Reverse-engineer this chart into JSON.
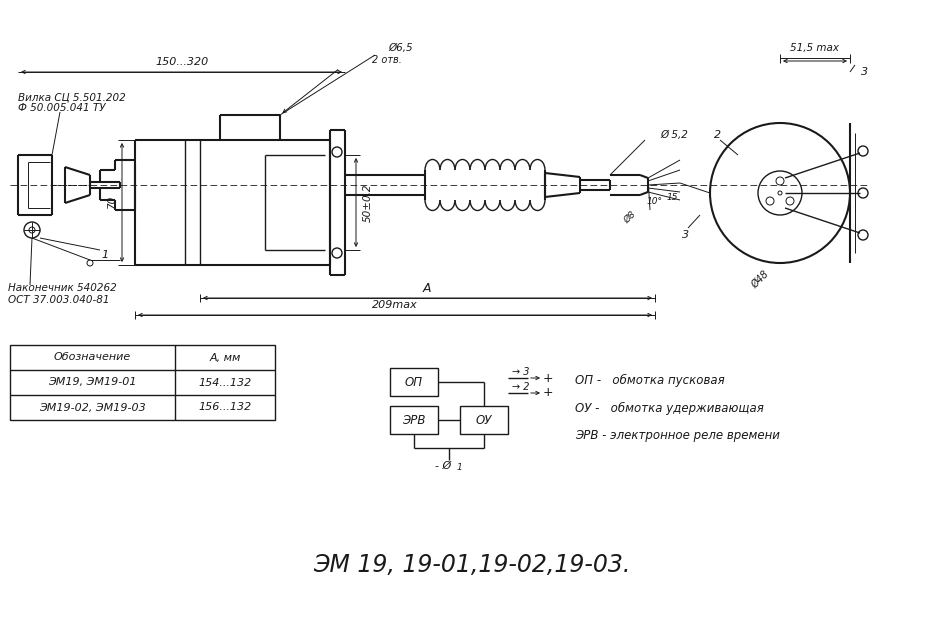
{
  "bg_color": "#ffffff",
  "line_color": "#1a1a1a",
  "title": "ЭМ 19, 19-01,19-02,19-03.",
  "title_fontsize": 17,
  "table_headers": [
    "Обозначение",
    "А, мм"
  ],
  "table_rows": [
    [
      "ЭМ19, ЭМ19-01",
      "154...132"
    ],
    [
      "ЭМ19-02, ЭМ19-03",
      "156...132"
    ]
  ],
  "legend_lines": [
    "ОП -   обмотка пусковая",
    "ОУ -   обмотка удерживающая",
    "ЭРВ - электронное реле времени"
  ]
}
